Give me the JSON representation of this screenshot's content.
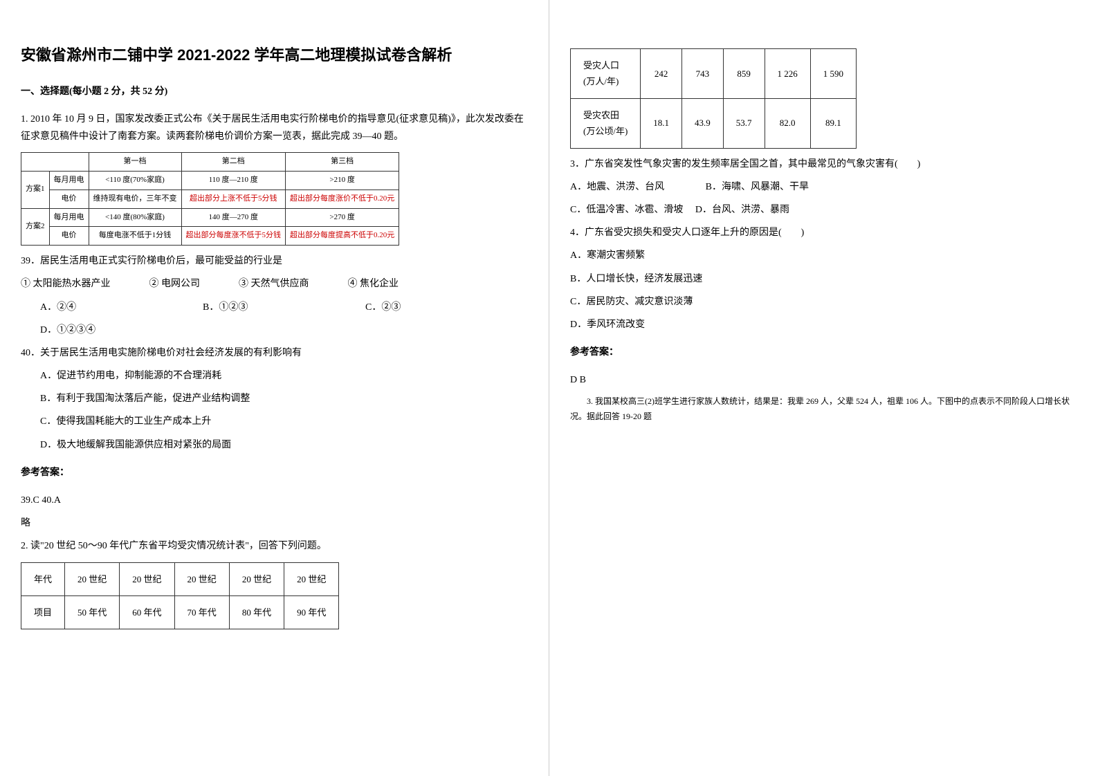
{
  "title": "安徽省滁州市二铺中学 2021-2022 学年高二地理模拟试卷含解析",
  "section1_title": "一、选择题(每小题 2 分，共 52 分)",
  "q1": {
    "intro": "1. 2010 年 10 月 9 日，国家发改委正式公布《关于居民生活用电实行阶梯电价的指导意见(征求意见稿)》，此次发改委在征求意见稿件中设计了南套方案。读两套阶梯电价调价方案一览表，据此完成 39—40 题。",
    "table": {
      "headers": [
        "",
        "",
        "第一档",
        "第二档",
        "第三档"
      ],
      "rows": [
        [
          "方案1",
          "每月用电",
          "<110 度(70%家庭)",
          "110 度—210 度",
          ">210 度"
        ],
        [
          "",
          "电价",
          "维持现有电价，三年不变",
          "超出部分上涨不低于5分钱",
          "超出部分每度涨价不低于0.20元"
        ],
        [
          "方案2",
          "每月用电",
          "<140 度(80%家庭)",
          "140 度—270 度",
          ">270 度"
        ],
        [
          "",
          "电价",
          "每度电涨不低于1分钱",
          "超出部分每度涨不低于5分钱",
          "超出部分每度提高不低于0.20元"
        ]
      ]
    },
    "q39": {
      "text": "39．居民生活用电正式实行阶梯电价后，最可能受益的行业是",
      "items": "① 太阳能热水器产业　　　　② 电网公司　　　　③ 天然气供应商　　　　④ 焦化企业",
      "optA": "A．②④",
      "optB": "B．①②③",
      "optC": "C．②③",
      "optD": "D．①②③④"
    },
    "q40": {
      "text": "40．关于居民生活用电实施阶梯电价对社会经济发展的有利影响有",
      "optA": "A．促进节约用电，抑制能源的不合理消耗",
      "optB": "B．有利于我国淘汰落后产能，促进产业结构调整",
      "optC": "C．使得我国耗能大的工业生产成本上升",
      "optD": "D．极大地缓解我国能源供应相对紧张的局面"
    },
    "answer_label": "参考答案：",
    "answer": "39.C  40.A",
    "note": "略"
  },
  "q2": {
    "intro": "2. 读\"20 世纪 50～90 年代广东省平均受灾情况统计表\"，回答下列问题。",
    "table": {
      "cols": [
        "年代",
        "20 世纪",
        "20 世纪",
        "20 世纪",
        "20 世纪",
        "20 世纪"
      ],
      "row0_label": "项目",
      "decades": [
        "50 年代",
        "60 年代",
        "70 年代",
        "80 年代",
        "90 年代"
      ],
      "row1_label": "受灾人口",
      "row1_unit": "(万人/年)",
      "row1_vals": [
        "242",
        "743",
        "859",
        "1 226",
        "1 590"
      ],
      "row2_label": "受灾农田",
      "row2_unit": "(万公顷/年)",
      "row2_vals": [
        "18.1",
        "43.9",
        "53.7",
        "82.0",
        "89.1"
      ]
    },
    "q3": {
      "text": "3．广东省突发性气象灾害的发生频率居全国之首，其中最常见的气象灾害有(　　)",
      "optA": "A．地震、洪涝、台风",
      "optB": "B．海啸、风暴潮、干旱",
      "optC": "C．低温冷害、冰雹、滑坡",
      "optD": "D．台风、洪涝、暴雨"
    },
    "q4": {
      "text": "4．广东省受灾损失和受灾人口逐年上升的原因是(　　)",
      "optA": "A．寒潮灾害频繁",
      "optB": "B．人口增长快，经济发展迅速",
      "optC": "C．居民防灾、减灾意识淡薄",
      "optD": "D．季风环流改变"
    },
    "answer_label": "参考答案：",
    "answer": "D B"
  },
  "q3_intro": "3. 我国某校高三(2)班学生进行家族人数统计，结果是：我辈 269 人，父辈 524 人，祖辈 106 人。下图中的点表示不同阶段人口增长状况。据此回答 19-20 题"
}
